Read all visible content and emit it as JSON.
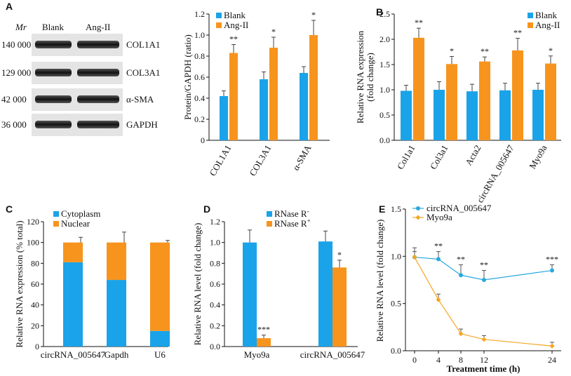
{
  "colors": {
    "blue": "#1aa3e8",
    "orange": "#f7941d",
    "blue_line": "#29a8e0",
    "orange_line": "#f5a623"
  },
  "blot": {
    "label": "A",
    "mr_label": "Mr",
    "lane_labels": [
      "Blank",
      "Ang-II"
    ],
    "rows": [
      {
        "mw": "140 000",
        "protein": "COL1A1"
      },
      {
        "mw": "129 000",
        "protein": "COL3A1"
      },
      {
        "mw": "42 000",
        "protein": "α-SMA"
      },
      {
        "mw": "36 000",
        "protein": "GAPDH"
      }
    ]
  },
  "chart_data": [
    {
      "id": "A",
      "type": "bar",
      "ylabel": "Protein/GAPDH (ratio)",
      "ylim": [
        0,
        1.2
      ],
      "yticks": [
        "0",
        "0.2",
        "0.4",
        "0.6",
        "0.8",
        "1.0",
        "1.2"
      ],
      "categories": [
        "COL1A1",
        "COL3A1",
        "α-SMA"
      ],
      "series": [
        {
          "name": "Blank",
          "values": [
            0.42,
            0.58,
            0.64
          ],
          "errors": [
            0.05,
            0.07,
            0.06
          ]
        },
        {
          "name": "Ang-II",
          "values": [
            0.83,
            0.88,
            1.0
          ],
          "errors": [
            0.08,
            0.1,
            0.14
          ]
        }
      ],
      "significance": [
        "**",
        "*",
        "*"
      ],
      "legend": "top-left"
    },
    {
      "id": "B",
      "label": "B",
      "type": "bar",
      "ylabel": "Relative RNA expression (fold change)",
      "ylim": [
        0,
        2.5
      ],
      "yticks": [
        "0.0",
        "0.5",
        "1.0",
        "1.5",
        "2.0",
        "2.5"
      ],
      "categories": [
        "Col1a1",
        "Col3a1",
        "Acta2",
        "circRNA_005647",
        "Myo9a"
      ],
      "series": [
        {
          "name": "Blank",
          "values": [
            0.98,
            1.0,
            0.97,
            0.99,
            1.0
          ],
          "errors": [
            0.11,
            0.16,
            0.14,
            0.14,
            0.13
          ]
        },
        {
          "name": "Ang-II",
          "values": [
            2.03,
            1.51,
            1.56,
            1.78,
            1.52
          ],
          "errors": [
            0.19,
            0.15,
            0.09,
            0.24,
            0.15
          ]
        }
      ],
      "significance": [
        "**",
        "*",
        "**",
        "**",
        "*"
      ],
      "legend": "top-right"
    },
    {
      "id": "C",
      "label": "C",
      "type": "bar",
      "stacked": true,
      "ylabel": "Relative RNA expression (% total)",
      "ylim": [
        0,
        120
      ],
      "yticks": [
        "0",
        "20",
        "40",
        "60",
        "80",
        "100",
        "120"
      ],
      "categories": [
        "circRNA_005647",
        "Gapdh",
        "U6"
      ],
      "series": [
        {
          "name": "Cytoplasm",
          "values": [
            81,
            64,
            15
          ],
          "errors": [
            5,
            9,
            3
          ]
        },
        {
          "name": "Nuclear",
          "values": [
            19,
            36,
            85
          ],
          "errors": [
            5,
            10,
            2
          ]
        }
      ],
      "legend": "top-left"
    },
    {
      "id": "D",
      "label": "D",
      "type": "bar",
      "ylabel": "Relative RNA level (fold change)",
      "ylim": [
        0,
        1.2
      ],
      "yticks": [
        "0.0",
        "0.2",
        "0.4",
        "0.6",
        "0.8",
        "1.0",
        "1.2"
      ],
      "categories": [
        "Myo9a",
        "circRNA_005647"
      ],
      "series": [
        {
          "name": "RNase R-",
          "values": [
            1.0,
            1.01
          ],
          "errors": [
            0.12,
            0.1
          ]
        },
        {
          "name": "RNase R+",
          "values": [
            0.08,
            0.76
          ],
          "errors": [
            0.03,
            0.07
          ]
        }
      ],
      "legend_labels": [
        {
          "text": "RNase R",
          "sup": "-"
        },
        {
          "text": "RNase R",
          "sup": "+"
        }
      ],
      "significance": [
        "***",
        "*"
      ],
      "legend": "top-center"
    },
    {
      "id": "E",
      "label": "E",
      "type": "line",
      "xlabel": "Treatment time (h)",
      "ylabel": "Relative RNA level (fold change)",
      "ylim": [
        0,
        1.5
      ],
      "xlim": [
        0,
        24
      ],
      "xticks": [
        "0",
        "4",
        "8",
        "12",
        "24"
      ],
      "yticks": [
        "0.0",
        "0.5",
        "1.0",
        "1.5"
      ],
      "x": [
        0,
        4,
        8,
        12,
        24
      ],
      "series": [
        {
          "name": "circRNA_005647",
          "values": [
            0.99,
            0.97,
            0.8,
            0.75,
            0.85
          ],
          "errors": [
            0.1,
            0.08,
            0.11,
            0.1,
            0.06
          ]
        },
        {
          "name": "Myo9a",
          "values": [
            0.99,
            0.54,
            0.18,
            0.12,
            0.05
          ],
          "errors": [
            0.06,
            0.06,
            0.05,
            0.04,
            0.04
          ]
        }
      ],
      "significance": [
        "",
        "**",
        "**",
        "**",
        "***"
      ],
      "legend": "top-left"
    }
  ]
}
